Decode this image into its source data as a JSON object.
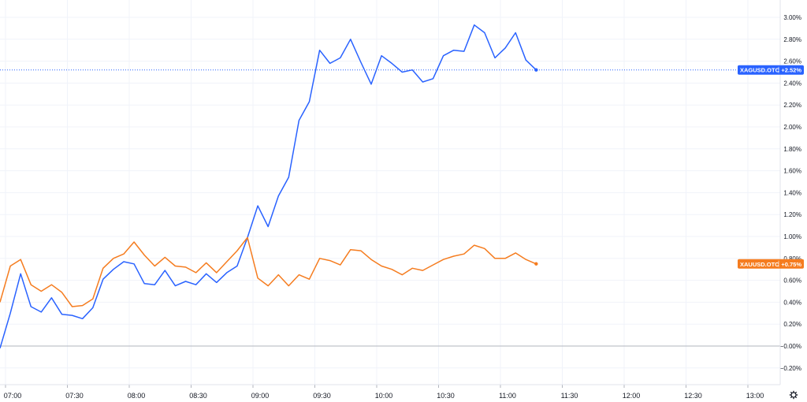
{
  "chart_data": {
    "type": "line",
    "x_ticks": [
      "07:00",
      "07:30",
      "08:00",
      "08:30",
      "09:00",
      "09:30",
      "10:00",
      "10:30",
      "11:00",
      "11:30",
      "12:00",
      "12:30",
      "13:00"
    ],
    "y_ticks": [
      "3.00%",
      "2.80%",
      "2.60%",
      "2.40%",
      "2.20%",
      "2.00%",
      "1.80%",
      "1.60%",
      "1.40%",
      "1.20%",
      "1.00%",
      "0.80%",
      "0.60%",
      "0.40%",
      "0.20%",
      "−0.00%",
      "−0.20%"
    ],
    "ylim": [
      -0.28,
      3.1
    ],
    "grid": true,
    "series": [
      {
        "name": "XAGUSD.OTC",
        "color": "#2962ff",
        "last_label": "+2.52%",
        "values": [
          -0.02,
          0.3,
          0.66,
          0.36,
          0.31,
          0.44,
          0.29,
          0.28,
          0.25,
          0.35,
          0.61,
          0.7,
          0.77,
          0.75,
          0.57,
          0.56,
          0.69,
          0.55,
          0.59,
          0.56,
          0.66,
          0.58,
          0.67,
          0.73,
          0.99,
          1.28,
          1.09,
          1.37,
          1.54,
          2.06,
          2.23,
          2.7,
          2.58,
          2.63,
          2.8,
          2.59,
          2.39,
          2.65,
          2.58,
          2.5,
          2.52,
          2.41,
          2.44,
          2.65,
          2.7,
          2.69,
          2.93,
          2.86,
          2.63,
          2.72,
          2.86,
          2.61,
          2.52
        ]
      },
      {
        "name": "XAUUSD.OTC",
        "color": "#f57c1f",
        "last_label": "+0.75%",
        "values": [
          0.4,
          0.73,
          0.79,
          0.56,
          0.5,
          0.56,
          0.49,
          0.36,
          0.37,
          0.43,
          0.71,
          0.8,
          0.84,
          0.95,
          0.83,
          0.73,
          0.81,
          0.73,
          0.72,
          0.67,
          0.76,
          0.67,
          0.77,
          0.87,
          0.99,
          0.62,
          0.55,
          0.65,
          0.55,
          0.65,
          0.61,
          0.8,
          0.78,
          0.74,
          0.88,
          0.87,
          0.79,
          0.73,
          0.7,
          0.65,
          0.71,
          0.69,
          0.74,
          0.79,
          0.82,
          0.84,
          0.92,
          0.89,
          0.8,
          0.8,
          0.85,
          0.79,
          0.75
        ]
      }
    ],
    "baseline": 0
  }
}
